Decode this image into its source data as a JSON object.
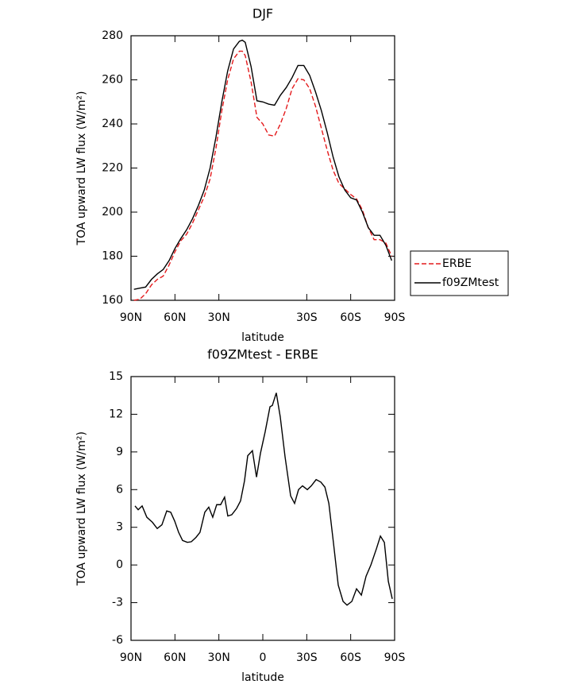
{
  "chart_data": [
    {
      "type": "line",
      "title": "DJF",
      "xlabel": "latitude",
      "ylabel": "TOA upward LW flux (W/m²)",
      "x": [
        88,
        84,
        80,
        76,
        72,
        68,
        64,
        60,
        56,
        52,
        48,
        44,
        40,
        36,
        32,
        28,
        24,
        20,
        16,
        14,
        12,
        8,
        4,
        0,
        -4,
        -8,
        -12,
        -16,
        -20,
        -24,
        -28,
        -32,
        -36,
        -40,
        -44,
        -48,
        -52,
        -56,
        -60,
        -64,
        -68,
        -72,
        -76,
        -80,
        -84,
        -88
      ],
      "series": [
        {
          "name": "ERBE",
          "color": "#e41a1c",
          "line_style": "dashed",
          "values": [
            160,
            160.5,
            163,
            167,
            169.5,
            171,
            176,
            182,
            187,
            190,
            195,
            201,
            207,
            215,
            229,
            246,
            260,
            269.5,
            273,
            273,
            271,
            259,
            243,
            240,
            235,
            234.5,
            240,
            247,
            256,
            260.5,
            260,
            256,
            248,
            238,
            228,
            219,
            213,
            210.5,
            208,
            206,
            201,
            193,
            187.5,
            187.5,
            186,
            180
          ]
        },
        {
          "name": "f09ZMtest",
          "color": "#000000",
          "line_style": "solid",
          "values": [
            165,
            165.5,
            166,
            169.5,
            172,
            174,
            178,
            183.5,
            188,
            192,
            197,
            203,
            210,
            220,
            234,
            250,
            264,
            274,
            277.5,
            278,
            277,
            266,
            250.5,
            250,
            249,
            248.5,
            253,
            256.5,
            261,
            266.5,
            266.5,
            262,
            254.5,
            246,
            236,
            225,
            216,
            210,
            206.5,
            205.5,
            200,
            193,
            189.5,
            189.5,
            185,
            178
          ]
        }
      ],
      "xlim": [
        90,
        -90
      ],
      "xticks": [
        {
          "value": 90,
          "label": "90N"
        },
        {
          "value": 60,
          "label": "60N"
        },
        {
          "value": 30,
          "label": "30N"
        },
        {
          "value": -30,
          "label": "30S"
        },
        {
          "value": -60,
          "label": "60S"
        },
        {
          "value": -90,
          "label": "90S"
        }
      ],
      "ylim": [
        160,
        280
      ],
      "yticks": [
        160,
        180,
        200,
        220,
        240,
        260,
        280
      ],
      "legend": "right",
      "grid": false
    },
    {
      "type": "line",
      "title": "f09ZMtest - ERBE",
      "xlabel": "latitude",
      "ylabel": "TOA upward LW flux (W/m²)",
      "x": [
        87.3,
        85.1,
        82.4,
        79.2,
        75.4,
        72.1,
        68.9,
        65.6,
        62.9,
        60.2,
        57.5,
        54.8,
        51.5,
        48.8,
        45.6,
        42.9,
        39.6,
        36.9,
        34.2,
        31.5,
        28.8,
        26.1,
        23.9,
        21.2,
        17.9,
        15.2,
        12.5,
        10.3,
        7.1,
        4.3,
        1.6,
        -1.6,
        -4.9,
        -6.5,
        -9.2,
        -11.9,
        -15.2,
        -19.0,
        -21.7,
        -24.4,
        -27.1,
        -30.4,
        -33.1,
        -36.4,
        -39.6,
        -42.4,
        -45.1,
        -48.3,
        -51.5,
        -54.8,
        -57.5,
        -60.8,
        -64.0,
        -67.3,
        -70.5,
        -73.8,
        -77.6,
        -80.3,
        -83.0,
        -85.7,
        -88.4
      ],
      "values": [
        4.7,
        4.4,
        4.7,
        3.8,
        3.4,
        2.9,
        3.2,
        4.3,
        4.2,
        3.5,
        2.6,
        1.95,
        1.8,
        1.85,
        2.2,
        2.6,
        4.2,
        4.6,
        3.8,
        4.8,
        4.8,
        5.4,
        3.9,
        4.0,
        4.5,
        5.1,
        6.7,
        8.7,
        9.1,
        7.0,
        8.9,
        10.6,
        12.6,
        12.7,
        13.7,
        11.8,
        8.6,
        5.5,
        4.9,
        6.0,
        6.3,
        6.0,
        6.3,
        6.8,
        6.6,
        6.2,
        4.9,
        1.7,
        -1.6,
        -2.9,
        -3.2,
        -2.9,
        -1.9,
        -2.4,
        -0.9,
        0.0,
        1.3,
        2.3,
        1.8,
        -1.3,
        -2.7
      ],
      "color": "#000000",
      "xlim": [
        90,
        -90
      ],
      "xticks": [
        {
          "value": 90,
          "label": "90N"
        },
        {
          "value": 60,
          "label": "60N"
        },
        {
          "value": 30,
          "label": "30N"
        },
        0,
        {
          "value": -30,
          "label": "30S"
        },
        {
          "value": -60,
          "label": "60S"
        },
        {
          "value": -90,
          "label": "90S"
        }
      ],
      "ylim": [
        -6,
        15
      ],
      "yticks": [
        -6,
        -3,
        0,
        3,
        6,
        9,
        12,
        15
      ],
      "grid": false
    }
  ]
}
